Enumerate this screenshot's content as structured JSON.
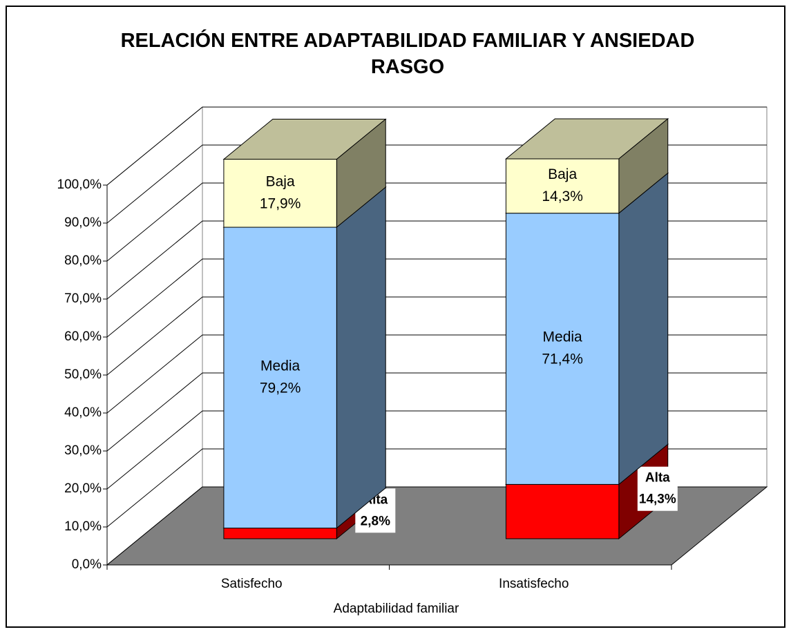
{
  "chart_data": {
    "type": "bar3d-stacked",
    "title": "RELACIÓN ENTRE ADAPTABILIDAD FAMILIAR Y ANSIEDAD RASGO",
    "x_label": "Adaptabilidad familiar",
    "categories": [
      "Satisfecho",
      "Insatisfecho"
    ],
    "series": [
      {
        "name": "Alta",
        "color": "#ff0000",
        "side_color": "#800000",
        "values": [
          2.8,
          14.3
        ],
        "value_labels": [
          "2,8%",
          "14,3%"
        ]
      },
      {
        "name": "Media",
        "color": "#99ccff",
        "side_color": "#4a6580",
        "values": [
          79.2,
          71.4
        ],
        "value_labels": [
          "79,2%",
          "71,4%"
        ]
      },
      {
        "name": "Baja",
        "color": "#ffffcc",
        "side_color": "#808064",
        "values": [
          17.9,
          14.3
        ],
        "value_labels": [
          "17,9%",
          "14,3%"
        ]
      }
    ],
    "ylim": [
      0,
      100
    ],
    "yticks": [
      {
        "value": 0,
        "label": "0,0%"
      },
      {
        "value": 10,
        "label": "10,0%"
      },
      {
        "value": 20,
        "label": "20,0%"
      },
      {
        "value": 30,
        "label": "30,0%"
      },
      {
        "value": 40,
        "label": "40,0%"
      },
      {
        "value": 50,
        "label": "50,0%"
      },
      {
        "value": 60,
        "label": "60,0%"
      },
      {
        "value": 70,
        "label": "70,0%"
      },
      {
        "value": 80,
        "label": "80,0%"
      },
      {
        "value": 90,
        "label": "90,0%"
      },
      {
        "value": 100,
        "label": "100,0%"
      }
    ],
    "grid": true
  }
}
